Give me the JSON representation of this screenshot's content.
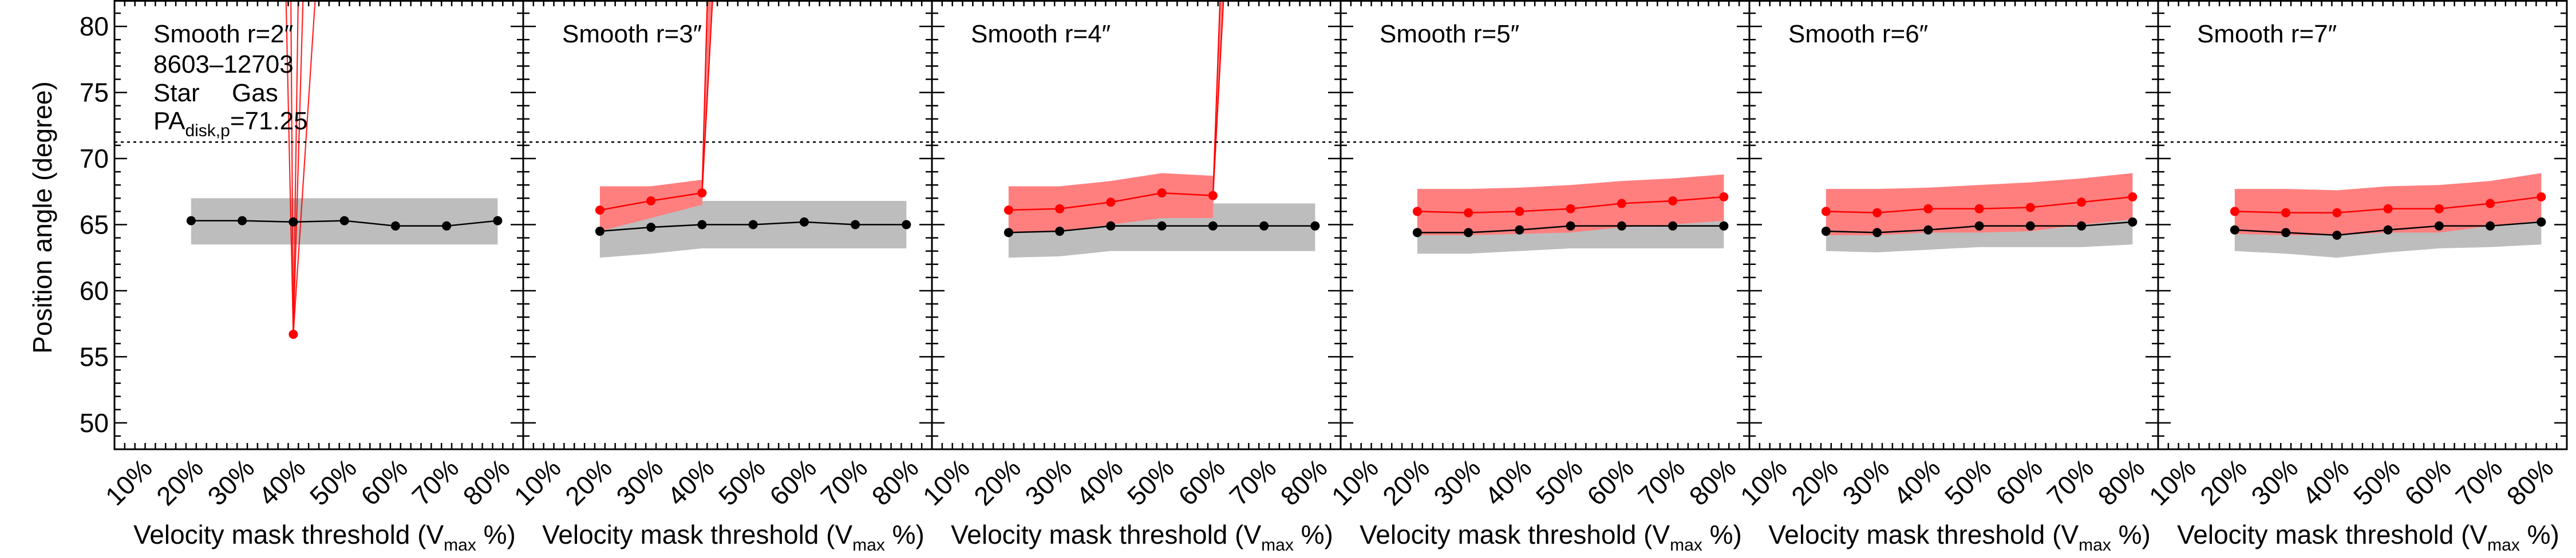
{
  "colors": {
    "star": "#000000",
    "star_band": "#bdbdbd",
    "gas": "#ff0000",
    "gas_band": "#ff7f7f",
    "frame": "#000000"
  },
  "legend": {
    "galaxy_id": "8603–12703",
    "star_label": "Star",
    "gas_label": "Gas",
    "pa_prefix": "PA",
    "pa_subscript": "disk,p",
    "pa_value_text": "=71.25"
  },
  "chart_data": {
    "type": "line",
    "ylabel": "Position angle (degree)",
    "xlabel": "Velocity mask threshold (V",
    "xlabel_sub": "max",
    "xlabel_suffix": " %)",
    "ylim": [
      48,
      82
    ],
    "yticks": [
      50,
      55,
      60,
      65,
      70,
      75,
      80
    ],
    "xlim": [
      5,
      85
    ],
    "xticks": [
      10,
      20,
      30,
      40,
      50,
      60,
      70,
      80
    ],
    "xtick_labels": [
      "10%",
      "20%",
      "30%",
      "40%",
      "50%",
      "60%",
      "70%",
      "80%"
    ],
    "reference_line": 71.25,
    "legend_placement": "top-left of first panel",
    "panels": [
      {
        "title": "Smooth r=2″",
        "star": {
          "x": [
            20,
            30,
            40,
            50,
            60,
            70,
            80
          ],
          "y": [
            65.3,
            65.3,
            65.2,
            65.3,
            64.9,
            64.9,
            65.3
          ],
          "lo": [
            63.5,
            63.5,
            63.5,
            63.5,
            63.5,
            63.5,
            63.5
          ],
          "hi": [
            67.0,
            67.0,
            67.0,
            67.0,
            67.0,
            67.0,
            67.0
          ]
        },
        "gas": {
          "x": [
            40
          ],
          "y": [
            56.7
          ],
          "lines": [
            [
              [
                40,
                56.7
              ],
              [
                37,
                110
              ]
            ],
            [
              [
                40,
                56.7
              ],
              [
                39,
                110
              ]
            ],
            [
              [
                40,
                56.7
              ],
              [
                42,
                110
              ]
            ],
            [
              [
                40,
                56.7
              ],
              [
                44,
                110
              ]
            ],
            [
              [
                40,
                56.7
              ],
              [
                49,
                110
              ]
            ]
          ]
        }
      },
      {
        "title": "Smooth r=3″",
        "star": {
          "x": [
            20,
            30,
            40,
            50,
            60,
            70,
            80
          ],
          "y": [
            64.5,
            64.8,
            65.0,
            65.0,
            65.2,
            65.0,
            65.0
          ],
          "lo": [
            62.5,
            62.8,
            63.2,
            63.2,
            63.2,
            63.2,
            63.2
          ],
          "hi": [
            66.5,
            66.8,
            66.8,
            66.8,
            66.8,
            66.8,
            66.8
          ]
        },
        "gas": {
          "x": [
            20,
            30,
            40
          ],
          "y": [
            66.1,
            66.8,
            67.4
          ],
          "lo": [
            64.5,
            65.5,
            66.5
          ],
          "hi": [
            67.9,
            67.9,
            68.4
          ],
          "runaway": {
            "from": [
              40,
              67.4
            ],
            "to": [
              [
                43,
                110
              ],
              [
                46,
                110
              ]
            ]
          }
        }
      },
      {
        "title": "Smooth r=4″",
        "star": {
          "x": [
            20,
            30,
            40,
            50,
            60,
            70,
            80
          ],
          "y": [
            64.4,
            64.5,
            64.9,
            64.9,
            64.9,
            64.9,
            64.9
          ],
          "lo": [
            62.5,
            62.6,
            63.0,
            63.0,
            63.0,
            63.0,
            63.0
          ],
          "hi": [
            66.6,
            66.6,
            66.6,
            66.6,
            66.6,
            66.6,
            66.6
          ]
        },
        "gas": {
          "x": [
            20,
            30,
            40,
            50,
            60
          ],
          "y": [
            66.1,
            66.2,
            66.7,
            67.4,
            67.2
          ],
          "lo": [
            64.4,
            64.5,
            65.0,
            65.5,
            65.5
          ],
          "hi": [
            67.9,
            67.9,
            68.3,
            68.9,
            68.7
          ],
          "runaway": {
            "from": [
              60,
              67.2
            ],
            "to": [
              [
                64,
                110
              ],
              [
                66,
                110
              ]
            ]
          }
        }
      },
      {
        "title": "Smooth r=5″",
        "star": {
          "x": [
            20,
            30,
            40,
            50,
            60,
            70,
            80
          ],
          "y": [
            64.4,
            64.4,
            64.6,
            64.9,
            64.9,
            64.9,
            64.9
          ],
          "lo": [
            62.8,
            62.8,
            63.0,
            63.2,
            63.2,
            63.2,
            63.2
          ],
          "hi": [
            66.0,
            66.0,
            66.2,
            66.4,
            66.4,
            66.4,
            66.4
          ]
        },
        "gas": {
          "x": [
            20,
            30,
            40,
            50,
            60,
            70,
            80
          ],
          "y": [
            66.0,
            65.9,
            66.0,
            66.2,
            66.6,
            66.8,
            67.1
          ],
          "lo": [
            64.2,
            64.2,
            64.3,
            64.4,
            64.8,
            65.0,
            65.3
          ],
          "hi": [
            67.7,
            67.7,
            67.8,
            68.0,
            68.3,
            68.5,
            68.8
          ]
        }
      },
      {
        "title": "Smooth r=6″",
        "star": {
          "x": [
            20,
            30,
            40,
            50,
            60,
            70,
            80
          ],
          "y": [
            64.5,
            64.4,
            64.6,
            64.9,
            64.9,
            64.9,
            65.2
          ],
          "lo": [
            63.0,
            62.9,
            63.1,
            63.3,
            63.3,
            63.3,
            63.5
          ],
          "hi": [
            66.0,
            65.9,
            66.1,
            66.4,
            66.4,
            66.4,
            66.7
          ]
        },
        "gas": {
          "x": [
            20,
            30,
            40,
            50,
            60,
            70,
            80
          ],
          "y": [
            66.0,
            65.9,
            66.2,
            66.2,
            66.3,
            66.7,
            67.1
          ],
          "lo": [
            64.2,
            64.2,
            64.4,
            64.4,
            64.5,
            65.0,
            65.4
          ],
          "hi": [
            67.7,
            67.7,
            67.8,
            68.0,
            68.2,
            68.5,
            68.9
          ]
        }
      },
      {
        "title": "Smooth r=7″",
        "star": {
          "x": [
            20,
            30,
            40,
            50,
            60,
            70,
            80
          ],
          "y": [
            64.6,
            64.4,
            64.2,
            64.6,
            64.9,
            64.9,
            65.2
          ],
          "lo": [
            63.0,
            62.8,
            62.5,
            62.9,
            63.2,
            63.3,
            63.5
          ],
          "hi": [
            66.1,
            66.0,
            65.8,
            66.2,
            66.4,
            66.5,
            66.8
          ]
        },
        "gas": {
          "x": [
            20,
            30,
            40,
            50,
            60,
            70,
            80
          ],
          "y": [
            66.0,
            65.9,
            65.9,
            66.2,
            66.2,
            66.6,
            67.1
          ],
          "lo": [
            64.3,
            64.2,
            64.2,
            64.4,
            64.4,
            64.9,
            65.3
          ],
          "hi": [
            67.7,
            67.7,
            67.6,
            67.9,
            68.0,
            68.3,
            68.9
          ]
        }
      }
    ]
  }
}
